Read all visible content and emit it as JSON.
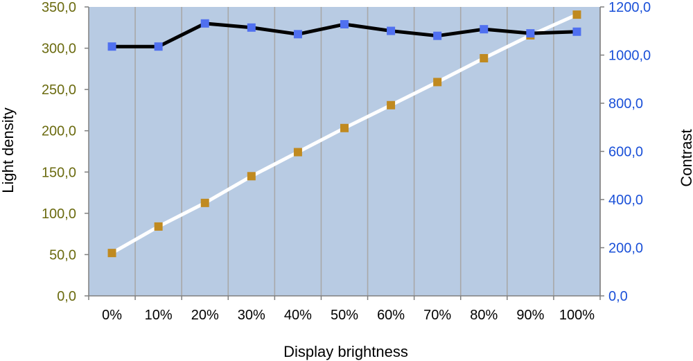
{
  "chart_data": {
    "type": "line",
    "title": "",
    "xlabel": "Display brightness",
    "ylabel_left": "Light density",
    "ylabel_right": "Contrast",
    "categories": [
      "0%",
      "10%",
      "20%",
      "30%",
      "40%",
      "50%",
      "60%",
      "70%",
      "80%",
      "90%",
      "100%"
    ],
    "left_axis": {
      "range": [
        0,
        350
      ],
      "ticks": [
        "0,0",
        "50,0",
        "100,0",
        "150,0",
        "200,0",
        "250,0",
        "300,0",
        "350,0"
      ],
      "tick_values": [
        0,
        50,
        100,
        150,
        200,
        250,
        300,
        350
      ],
      "label_color": "#6b6b10"
    },
    "right_axis": {
      "range": [
        0,
        1200
      ],
      "ticks": [
        "0,0",
        "200,0",
        "400,0",
        "600,0",
        "800,0",
        "1000,0",
        "1200,0"
      ],
      "tick_values": [
        0,
        200,
        400,
        600,
        800,
        1000,
        1200
      ],
      "label_color": "#1a50d8"
    },
    "series": [
      {
        "key": "light_density",
        "axis": "left",
        "values": [
          302,
          302,
          330,
          325,
          317,
          329,
          321,
          315,
          323,
          318,
          320
        ],
        "line_color": "#000000",
        "marker_color": "#5070f0"
      },
      {
        "key": "contrast",
        "axis": "right",
        "values": [
          178,
          288,
          386,
          497,
          597,
          697,
          792,
          888,
          987,
          1082,
          1168
        ],
        "line_color": "#ffffff",
        "marker_color": "#c08a20"
      }
    ],
    "plot_background": "#b8cbe3",
    "grid": true,
    "grid_color": "#a8a8a8"
  }
}
